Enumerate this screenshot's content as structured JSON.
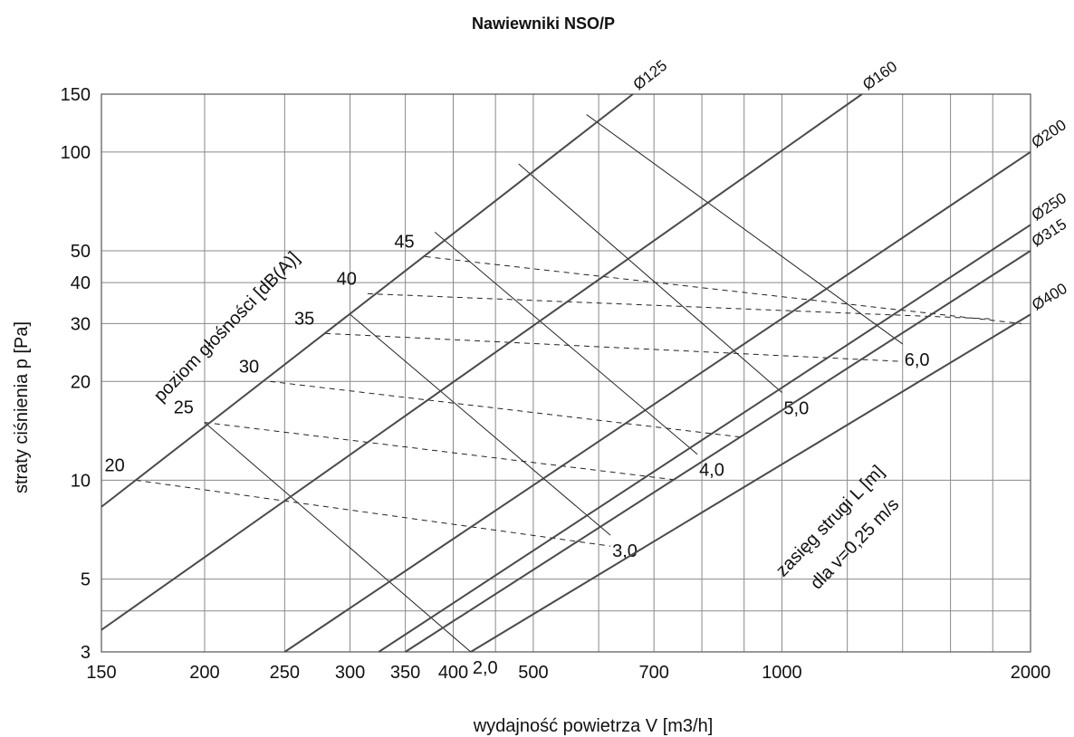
{
  "chart_data": {
    "type": "line",
    "title": "Nawiewniki NSO/P",
    "xlabel": "wydajność powietrza  V [m3/h]",
    "ylabel": "straty ciśnienia  p [Pa]",
    "x_scale": "log",
    "y_scale": "log",
    "xlim": [
      150,
      2000
    ],
    "ylim": [
      3,
      150
    ],
    "x_ticks": [
      {
        "value": 150,
        "label": "150"
      },
      {
        "value": 200,
        "label": "200"
      },
      {
        "value": 250,
        "label": "250"
      },
      {
        "value": 300,
        "label": "300"
      },
      {
        "value": 350,
        "label": "350"
      },
      {
        "value": 400,
        "label": "400"
      },
      {
        "value": 500,
        "label": "500"
      },
      {
        "value": 700,
        "label": "700"
      },
      {
        "value": 1000,
        "label": "1000"
      },
      {
        "value": 2000,
        "label": "2000"
      }
    ],
    "y_ticks": [
      {
        "value": 3,
        "label": "3"
      },
      {
        "value": 5,
        "label": "5"
      },
      {
        "value": 10,
        "label": "10"
      },
      {
        "value": 20,
        "label": "20"
      },
      {
        "value": 30,
        "label": "30"
      },
      {
        "value": 40,
        "label": "40"
      },
      {
        "value": 50,
        "label": "50"
      },
      {
        "value": 100,
        "label": "100"
      },
      {
        "value": 150,
        "label": "150"
      }
    ],
    "x_grid": [
      150,
      200,
      250,
      300,
      350,
      400,
      450,
      500,
      600,
      700,
      800,
      900,
      1000,
      1200,
      1400,
      1600,
      1800,
      2000
    ],
    "y_grid": [
      3,
      4,
      5,
      10,
      20,
      30,
      40,
      50,
      100,
      150
    ],
    "grid": true,
    "series": [
      {
        "name": "Ø125",
        "points": [
          [
            150,
            8.3
          ],
          [
            660,
            150
          ]
        ]
      },
      {
        "name": "Ø160",
        "points": [
          [
            150,
            3.5
          ],
          [
            1250,
            150
          ]
        ]
      },
      {
        "name": "Ø200",
        "points": [
          [
            250,
            3
          ],
          [
            2000,
            100
          ]
        ]
      },
      {
        "name": "Ø250",
        "points": [
          [
            325,
            3
          ],
          [
            2000,
            60
          ]
        ]
      },
      {
        "name": "Ø315",
        "points": [
          [
            350,
            3
          ],
          [
            2000,
            50
          ]
        ]
      },
      {
        "name": "Ø400",
        "points": [
          [
            420,
            3
          ],
          [
            2000,
            32
          ]
        ]
      }
    ],
    "range_lines": [
      {
        "label": "2,0",
        "points": [
          [
            200,
            15
          ],
          [
            420,
            3
          ]
        ]
      },
      {
        "label": "3,0",
        "points": [
          [
            300,
            32
          ],
          [
            620,
            6.8
          ]
        ]
      },
      {
        "label": "4,0",
        "points": [
          [
            380,
            57
          ],
          [
            790,
            12
          ]
        ]
      },
      {
        "label": "5,0",
        "points": [
          [
            480,
            92
          ],
          [
            1000,
            18.5
          ]
        ]
      },
      {
        "label": "6,0",
        "points": [
          [
            580,
            130
          ],
          [
            1400,
            26
          ]
        ]
      }
    ],
    "noise_lines": [
      {
        "label": "20",
        "points": [
          [
            165,
            10
          ],
          [
            620,
            6.3
          ]
        ]
      },
      {
        "label": "25",
        "points": [
          [
            200,
            15
          ],
          [
            750,
            10
          ]
        ]
      },
      {
        "label": "30",
        "points": [
          [
            240,
            20
          ],
          [
            900,
            13.5
          ]
        ]
      },
      {
        "label": "35",
        "points": [
          [
            280,
            28
          ],
          [
            1400,
            23
          ]
        ]
      },
      {
        "label": "40",
        "points": [
          [
            315,
            37
          ],
          [
            1800,
            31
          ]
        ]
      },
      {
        "label": "45",
        "points": [
          [
            370,
            48
          ],
          [
            1950,
            30
          ]
        ]
      }
    ],
    "annotations": {
      "noise_title": "poziom głośności [dB(A)]",
      "range_title": "zasięg strugi L [m]",
      "range_subtitle": "dla v=0,25 m/s"
    }
  }
}
